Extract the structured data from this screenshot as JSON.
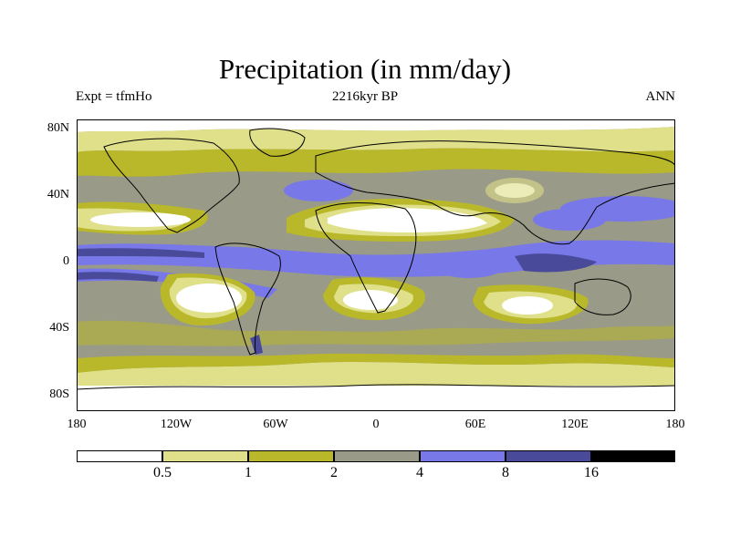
{
  "title": "Precipitation (in mm/day)",
  "subtitle_left": "Expt = tfmHo",
  "subtitle_center": "2216kyr BP",
  "subtitle_right": "ANN",
  "lat_labels": [
    "80N",
    "40N",
    "0",
    "40S",
    "80S"
  ],
  "lon_labels": [
    "180",
    "120W",
    "60W",
    "0",
    "60E",
    "120E",
    "180"
  ],
  "colorbar": {
    "colors": [
      "#ffffff",
      "#e0e08a",
      "#b8b82a",
      "#9a9a88",
      "#7878e8",
      "#4a4a9a",
      "#000000"
    ],
    "labels": [
      "0.5",
      "1",
      "2",
      "4",
      "8",
      "16"
    ]
  }
}
